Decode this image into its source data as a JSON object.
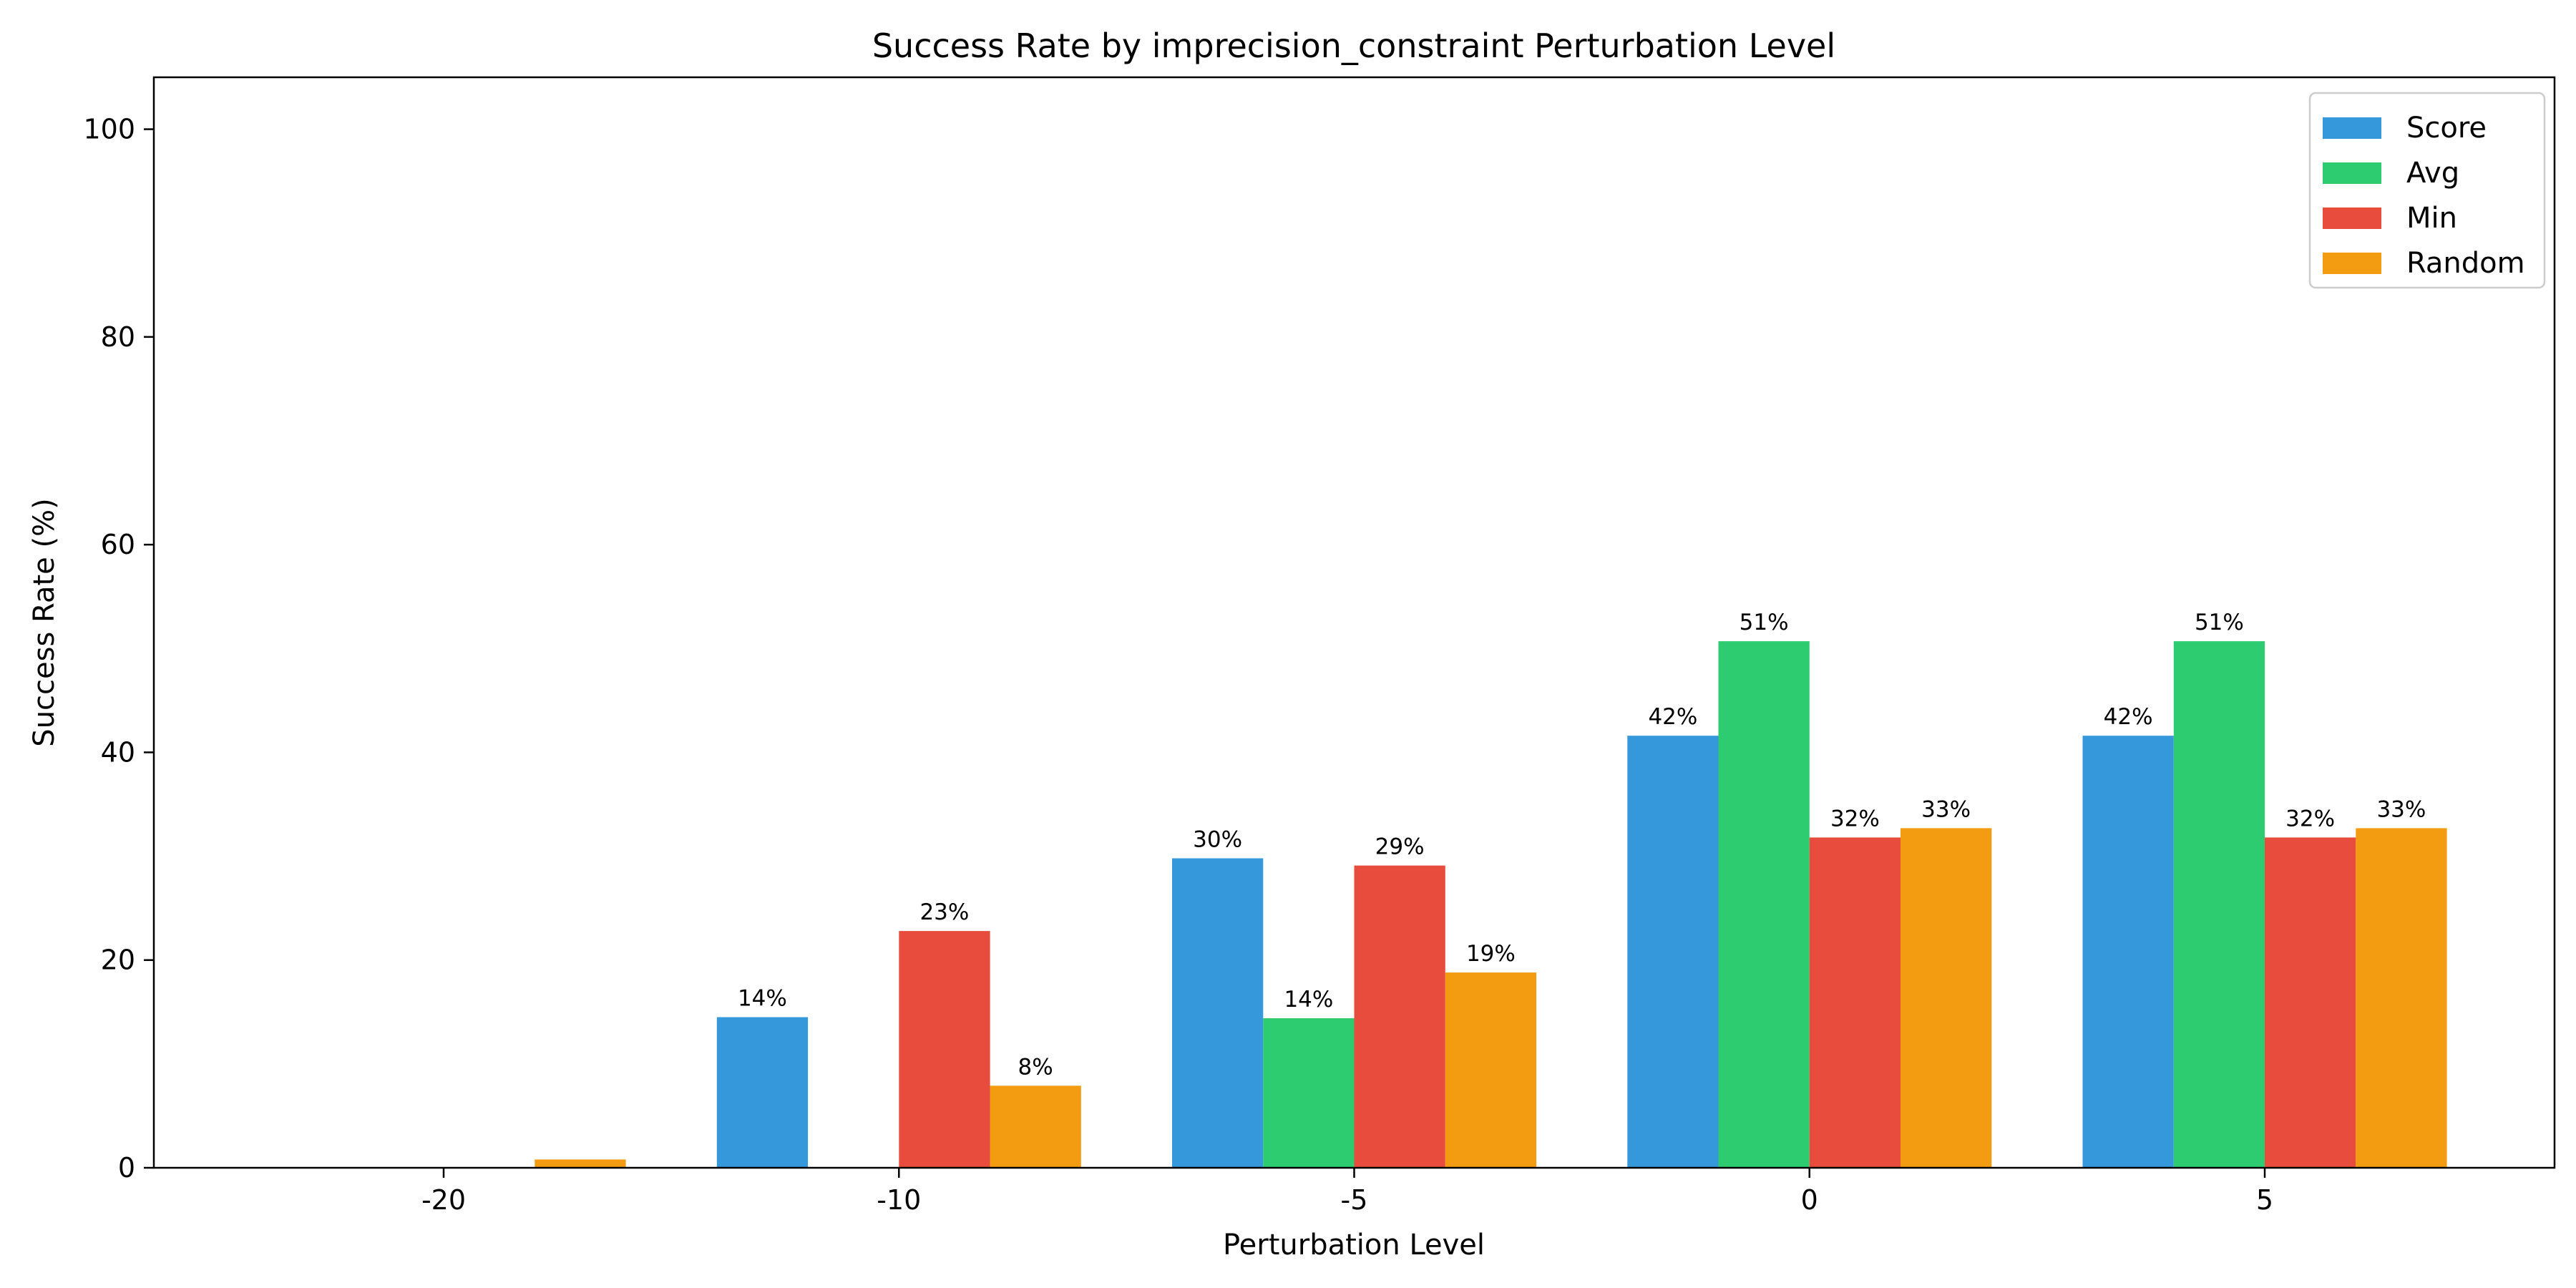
{
  "chart_data": {
    "type": "bar",
    "title": "Success Rate by imprecision_constraint Perturbation Level",
    "xlabel": "Perturbation Level",
    "ylabel": "Success Rate (%)",
    "categories": [
      "-20",
      "-10",
      "-5",
      "0",
      "5"
    ],
    "ylim": [
      0,
      105
    ],
    "yticks": [
      0,
      20,
      40,
      60,
      80,
      100
    ],
    "legend_position": "top-right",
    "grid": false,
    "series": [
      {
        "name": "Score",
        "color": "#3498db",
        "values": [
          0,
          14.5,
          29.8,
          41.6,
          41.6
        ],
        "labels": [
          "",
          "14%",
          "30%",
          "42%",
          "42%"
        ]
      },
      {
        "name": "Avg",
        "color": "#2ecc71",
        "values": [
          0,
          0,
          14.4,
          50.7,
          50.7
        ],
        "labels": [
          "",
          "",
          "14%",
          "51%",
          "51%"
        ]
      },
      {
        "name": "Min",
        "color": "#e74c3c",
        "values": [
          0,
          22.8,
          29.1,
          31.8,
          31.8
        ],
        "labels": [
          "",
          "23%",
          "29%",
          "32%",
          "32%"
        ]
      },
      {
        "name": "Random",
        "color": "#f39c12",
        "values": [
          0.8,
          7.9,
          18.8,
          32.7,
          32.7
        ],
        "labels": [
          "",
          "8%",
          "19%",
          "33%",
          "33%"
        ]
      }
    ]
  }
}
